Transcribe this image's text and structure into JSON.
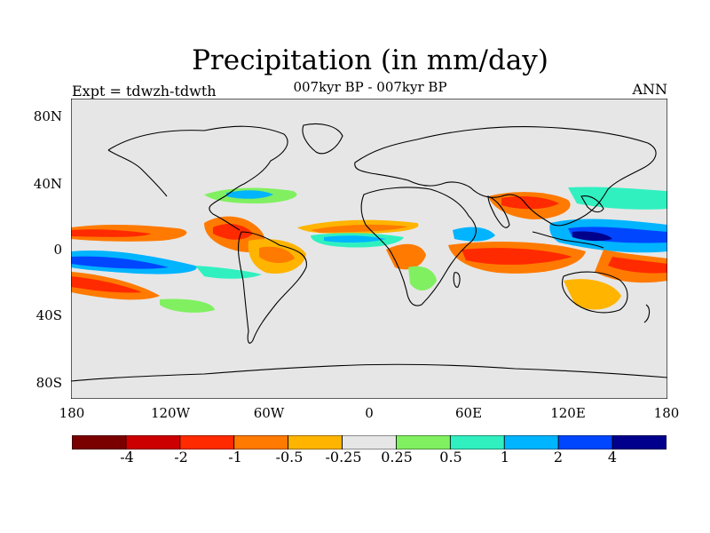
{
  "title": "Precipitation (in mm/day)",
  "subtitle": "007kyr BP - 007kyr BP",
  "left_label": "Expt = tdwzh-tdwth",
  "right_label": "ANN",
  "lat_labels": [
    "80N",
    "40N",
    "0",
    "40S",
    "80S"
  ],
  "lon_labels": [
    "180",
    "120W",
    "60W",
    "0",
    "60E",
    "120E",
    "180"
  ],
  "colorbar": {
    "colors": [
      "#7a0000",
      "#cc0000",
      "#ff2a00",
      "#ff7a00",
      "#ffb400",
      "#e6e6e6",
      "#80f060",
      "#30f0c0",
      "#00b4ff",
      "#0046ff",
      "#00008c"
    ],
    "labels": [
      "-4",
      "-2",
      "-1",
      "-0.5",
      "-0.25",
      "0.25",
      "0.5",
      "1",
      "2",
      "4"
    ]
  }
}
